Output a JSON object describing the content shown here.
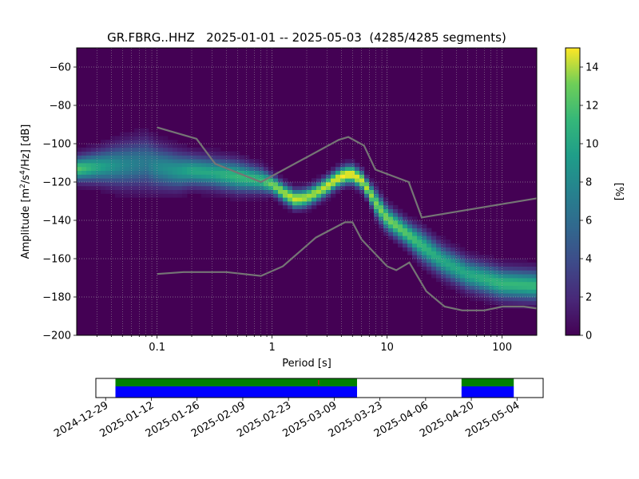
{
  "title": "GR.FBRG..HHZ   2025-01-01 -- 2025-05-03  (4285/4285 segments)",
  "chart_data": [
    {
      "type": "heatmap",
      "title": "GR.FBRG..HHZ   2025-01-01 -- 2025-05-03  (4285/4285 segments)",
      "xlabel": "Period [s]",
      "ylabel_parts": [
        "Amplitude [m",
        "2",
        "/s",
        "4",
        "/Hz] [dB]"
      ],
      "x_scale": "log",
      "xlim": [
        0.02,
        200
      ],
      "ylim": [
        -200,
        -50
      ],
      "x_ticks": [
        {
          "value": 0.1,
          "label": "0.1"
        },
        {
          "value": 1,
          "label": "1"
        },
        {
          "value": 10,
          "label": "10"
        },
        {
          "value": 100,
          "label": "100"
        }
      ],
      "y_ticks": [
        {
          "value": -60,
          "label": "−60"
        },
        {
          "value": -80,
          "label": "−80"
        },
        {
          "value": -100,
          "label": "−100"
        },
        {
          "value": -120,
          "label": "−120"
        },
        {
          "value": -140,
          "label": "−140"
        },
        {
          "value": -160,
          "label": "−160"
        },
        {
          "value": -180,
          "label": "−180"
        },
        {
          "value": -200,
          "label": "−200"
        }
      ],
      "grid": true,
      "colormap": "viridis",
      "colorbar": {
        "label": "[%]",
        "range": [
          0,
          15
        ],
        "ticks": [
          {
            "value": 0,
            "label": "0"
          },
          {
            "value": 2,
            "label": "2"
          },
          {
            "value": 4,
            "label": "4"
          },
          {
            "value": 6,
            "label": "6"
          },
          {
            "value": 8,
            "label": "8"
          },
          {
            "value": 10,
            "label": "10"
          },
          {
            "value": 12,
            "label": "12"
          },
          {
            "value": 14,
            "label": "14"
          }
        ]
      },
      "mode_curve": {
        "period": [
          0.02,
          0.03,
          0.05,
          0.08,
          0.1,
          0.15,
          0.2,
          0.3,
          0.5,
          0.8,
          1,
          1.3,
          1.6,
          2,
          2.5,
          3,
          3.5,
          4,
          4.5,
          5,
          6,
          7,
          8,
          10,
          15,
          20,
          30,
          50,
          100,
          200
        ],
        "amplitude": [
          -113,
          -112,
          -111,
          -110,
          -112,
          -114,
          -114,
          -115,
          -117,
          -119,
          -121,
          -126,
          -129,
          -128,
          -125,
          -122,
          -119,
          -117,
          -116,
          -116,
          -119,
          -125,
          -131,
          -139,
          -147,
          -153,
          -161,
          -168,
          -173,
          -174
        ],
        "spread_db": [
          4,
          5,
          7,
          8,
          7,
          6,
          5,
          5,
          5,
          4,
          3,
          3,
          3,
          3,
          3,
          3,
          3,
          3,
          3,
          3,
          3,
          3,
          4,
          4,
          4,
          5,
          5,
          5,
          5,
          5
        ],
        "peak_percent": [
          11,
          9,
          7,
          6,
          7,
          8,
          9,
          9,
          10,
          10,
          12,
          13,
          14,
          13,
          13,
          14,
          14,
          15,
          15,
          15,
          14,
          13,
          12,
          12,
          11,
          10,
          9,
          9,
          10,
          10
        ]
      },
      "noise_models": [
        {
          "name": "",
          "period": [
            0.1,
            0.17,
            0.4,
            0.8,
            1.24,
            2.4,
            4.3,
            5,
            6,
            10,
            12,
            15.6,
            21.9,
            31.6,
            45,
            70,
            101,
            154,
            200
          ],
          "amplitude": [
            -168,
            -167,
            -167,
            -169,
            -164,
            -149,
            -141,
            -141,
            -150,
            -164,
            -166,
            -162,
            -177,
            -185,
            -187,
            -187,
            -185,
            -185,
            -186
          ]
        },
        {
          "name": "",
          "period": [
            0.1,
            0.22,
            0.32,
            0.8,
            3.8,
            4.6,
            6.3,
            7.9,
            15.4,
            20,
            200
          ],
          "amplitude": [
            -91.5,
            -97.4,
            -110.5,
            -120,
            -98,
            -96.5,
            -101,
            -113.5,
            -120,
            -138.5,
            -128.5
          ]
        }
      ]
    },
    {
      "type": "timeline",
      "x_ticks": [
        "2024-12-29",
        "2025-01-12",
        "2025-01-26",
        "2025-02-09",
        "2025-02-23",
        "2025-03-09",
        "2025-03-23",
        "2025-04-06",
        "2025-04-20",
        "2025-05-04"
      ],
      "xlim": [
        "2024-12-26",
        "2025-05-12"
      ],
      "coverage": [
        {
          "start": "2025-01-01",
          "end": "2025-03-16"
        },
        {
          "start": "2025-04-17",
          "end": "2025-05-03"
        }
      ],
      "colors": {
        "data": "#0000ff",
        "psd": "#008000",
        "gap": "#ff0000",
        "background": "#ffffff"
      }
    }
  ]
}
